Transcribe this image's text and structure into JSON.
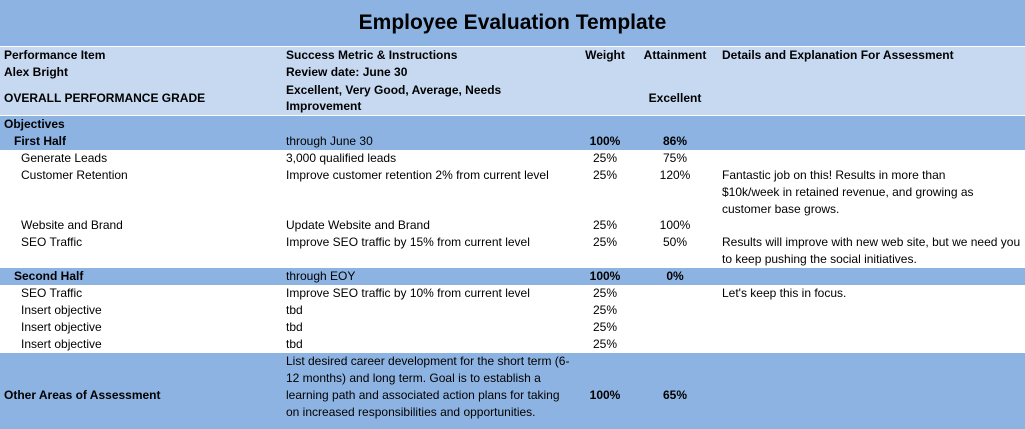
{
  "title": "Employee Evaluation Template",
  "headers": {
    "item": "Performance Item",
    "metric": "Success Metric & Instructions",
    "weight": "Weight",
    "attainment": "Attainment",
    "details": "Details and Explanation For Assessment"
  },
  "employee": {
    "name": "Alex Bright",
    "review_date": "Review date: June 30",
    "grade_label": "OVERALL PERFORMANCE GRADE",
    "grade_options": "Excellent, Very Good, Average, Needs Improvement",
    "grade": "Excellent"
  },
  "objectives_label": "Objectives",
  "first_half": {
    "label": "First Half",
    "metric": "through June 30",
    "weight": "100%",
    "attainment": "86%",
    "items": [
      {
        "item": "Generate Leads",
        "metric": "3,000 qualified leads",
        "weight": "25%",
        "attainment": "75%",
        "details": ""
      },
      {
        "item": "Customer Retention",
        "metric": "Improve customer retention 2% from current level",
        "weight": "25%",
        "attainment": "120%",
        "details": "Fantastic job on this! Results in more than $10k/week in retained revenue, and growing as customer base grows."
      },
      {
        "item": "Website and Brand",
        "metric": "Update Website and Brand",
        "weight": "25%",
        "attainment": "100%",
        "details": ""
      },
      {
        "item": "SEO Traffic",
        "metric": "Improve SEO traffic by 15% from current level",
        "weight": "25%",
        "attainment": "50%",
        "details": "Results will improve with new web site, but we need you to keep pushing the social initiatives."
      }
    ]
  },
  "second_half": {
    "label": "Second Half",
    "metric": "through EOY",
    "weight": "100%",
    "attainment": "0%",
    "items": [
      {
        "item": "SEO Traffic",
        "metric": "Improve SEO traffic by 10% from current level",
        "weight": "25%",
        "attainment": "",
        "details": "Let's keep this in focus."
      },
      {
        "item": "Insert objective",
        "metric": "tbd",
        "weight": "25%",
        "attainment": "",
        "details": ""
      },
      {
        "item": "Insert objective",
        "metric": "tbd",
        "weight": "25%",
        "attainment": "",
        "details": ""
      },
      {
        "item": "Insert objective",
        "metric": "tbd",
        "weight": "25%",
        "attainment": "",
        "details": ""
      }
    ]
  },
  "other": {
    "label": "Other Areas of Assessment",
    "metric": "List desired career development for the short term (6-12 months) and long term. Goal is to establish a learning path and associated action plans for taking on increased responsibilities and opportunities.",
    "weight": "100%",
    "attainment": "65%"
  }
}
